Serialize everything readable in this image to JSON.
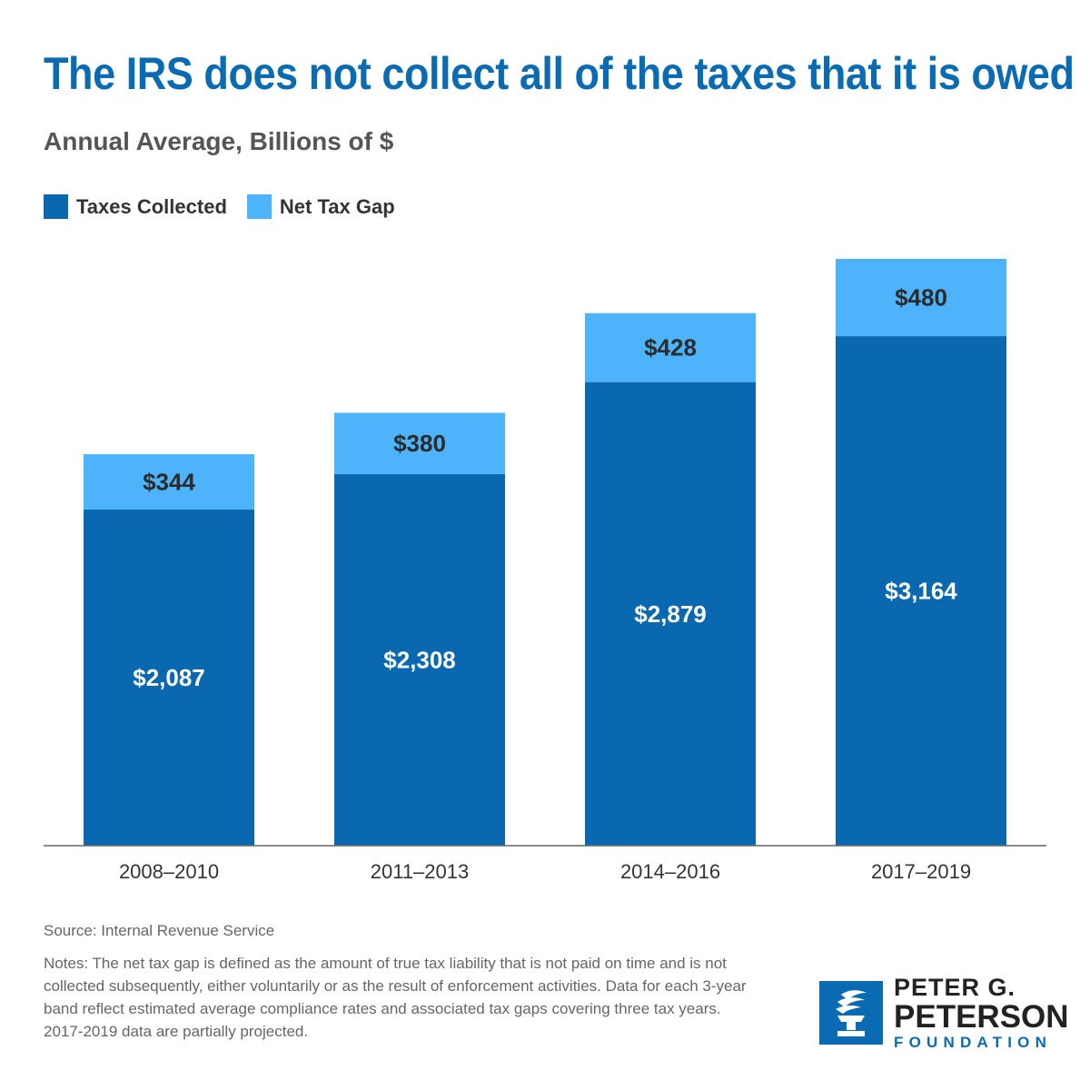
{
  "title": "The IRS does not collect all of the taxes that it is owed",
  "subtitle": "Annual Average, Billions of $",
  "legend": {
    "collected_label": "Taxes Collected",
    "gap_label": "Net Tax Gap"
  },
  "colors": {
    "collected": "#0a68b0",
    "gap": "#4db3fb",
    "title": "#0a6bb3"
  },
  "chart_data": {
    "type": "bar",
    "stacked": true,
    "title": "The IRS does not collect all of the taxes that it is owed",
    "subtitle": "Annual Average, Billions of $",
    "categories": [
      "2008–2010",
      "2011–2013",
      "2014–2016",
      "2017–2019"
    ],
    "series": [
      {
        "name": "Taxes Collected",
        "values": [
          2087,
          2308,
          2879,
          3164
        ],
        "labels": [
          "$2,087",
          "$2,308",
          "$2,879",
          "$3,164"
        ]
      },
      {
        "name": "Net Tax Gap",
        "values": [
          344,
          380,
          428,
          480
        ],
        "labels": [
          "$344",
          "$380",
          "$428",
          "$480"
        ]
      }
    ],
    "ylim": [
      0,
      3644
    ],
    "grid": false,
    "legend_position": "top-left"
  },
  "source": "Source: Internal Revenue Service",
  "notes": "Notes: The net tax gap is defined as the amount of true tax liability that is not paid on time and is not collected subsequently, either voluntarily or as the result of enforcement activities. Data for each 3-year band reflect estimated average compliance rates and associated tax gaps covering three tax years. 2017-2019 data are partially projected.",
  "logo": {
    "line1": "PETER G.",
    "line2": "PETERSON",
    "line3": "FOUNDATION"
  }
}
